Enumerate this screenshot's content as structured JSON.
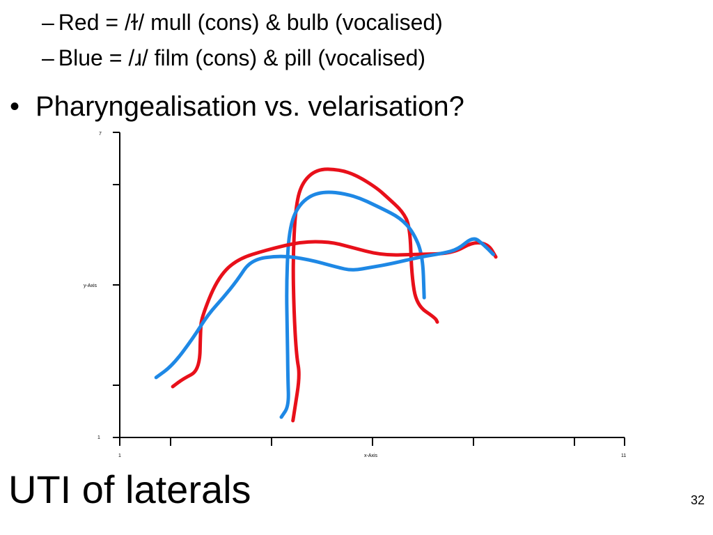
{
  "sub_bullets": [
    {
      "dash": "–",
      "text": "Red = /ɫ/ mull (cons) & bulb (vocalised)"
    },
    {
      "dash": "–",
      "text": "Blue = /ɹ/ film (cons) & pill (vocalised)"
    }
  ],
  "bullet": {
    "marker": "•",
    "text": "Pharyngealisation vs. velarisation?"
  },
  "slide_title": "UTI of laterals",
  "page_number": "32",
  "colors": {
    "red": "#e8101a",
    "blue": "#1e88e5",
    "axis": "#000000"
  },
  "chart_data": {
    "type": "line",
    "xlabel": "x-Axis",
    "ylabel": "y-Axis",
    "xlim": [
      1,
      11
    ],
    "ylim": [
      1,
      7
    ],
    "x_ticks": [
      "1",
      "11"
    ],
    "y_ticks": [
      "7",
      "1"
    ],
    "grid": false,
    "series": [
      {
        "color": "red",
        "points": [
          [
            4.43,
            1.33
          ],
          [
            4.46,
            1.52
          ],
          [
            4.57,
            2.22
          ],
          [
            4.5,
            2.6
          ],
          [
            4.45,
            3.5
          ],
          [
            4.43,
            4.5
          ],
          [
            4.48,
            5.5
          ],
          [
            4.6,
            6.0
          ],
          [
            4.9,
            6.28
          ],
          [
            5.35,
            6.27
          ],
          [
            5.7,
            6.15
          ],
          [
            6.1,
            5.9
          ],
          [
            6.3,
            5.72
          ],
          [
            6.6,
            5.45
          ],
          [
            6.75,
            5.15
          ],
          [
            6.78,
            4.2
          ],
          [
            6.88,
            3.6
          ],
          [
            7.25,
            3.35
          ],
          [
            7.29,
            3.27
          ]
        ]
      },
      {
        "color": "blue",
        "points": [
          [
            4.2,
            1.4
          ],
          [
            4.35,
            1.62
          ],
          [
            4.33,
            2.2
          ],
          [
            4.32,
            3.0
          ],
          [
            4.3,
            4.0
          ],
          [
            4.35,
            5.1
          ],
          [
            4.55,
            5.6
          ],
          [
            4.95,
            5.85
          ],
          [
            5.6,
            5.78
          ],
          [
            6.2,
            5.5
          ],
          [
            6.55,
            5.32
          ],
          [
            6.8,
            5.06
          ],
          [
            7.0,
            4.6
          ],
          [
            7.03,
            3.75
          ]
        ]
      },
      {
        "color": "red",
        "points": [
          [
            2.05,
            2.0
          ],
          [
            2.25,
            2.15
          ],
          [
            2.58,
            2.32
          ],
          [
            2.6,
            3.1
          ],
          [
            2.62,
            3.35
          ],
          [
            2.92,
            4.1
          ],
          [
            3.3,
            4.5
          ],
          [
            3.95,
            4.7
          ],
          [
            4.6,
            4.85
          ],
          [
            5.15,
            4.85
          ],
          [
            5.55,
            4.75
          ],
          [
            6.2,
            4.58
          ],
          [
            6.9,
            4.6
          ],
          [
            7.6,
            4.62
          ],
          [
            8.0,
            4.85
          ],
          [
            8.3,
            4.8
          ],
          [
            8.45,
            4.55
          ]
        ]
      },
      {
        "color": "blue",
        "points": [
          [
            1.72,
            2.18
          ],
          [
            2.05,
            2.42
          ],
          [
            2.45,
            2.95
          ],
          [
            2.75,
            3.42
          ],
          [
            3.05,
            3.75
          ],
          [
            3.32,
            4.08
          ],
          [
            3.6,
            4.5
          ],
          [
            4.2,
            4.58
          ],
          [
            4.75,
            4.5
          ],
          [
            5.3,
            4.35
          ],
          [
            5.6,
            4.28
          ],
          [
            6.0,
            4.35
          ],
          [
            6.4,
            4.42
          ],
          [
            6.95,
            4.55
          ],
          [
            7.4,
            4.62
          ],
          [
            7.7,
            4.7
          ],
          [
            8.0,
            4.95
          ],
          [
            8.2,
            4.8
          ],
          [
            8.4,
            4.6
          ]
        ]
      }
    ]
  }
}
